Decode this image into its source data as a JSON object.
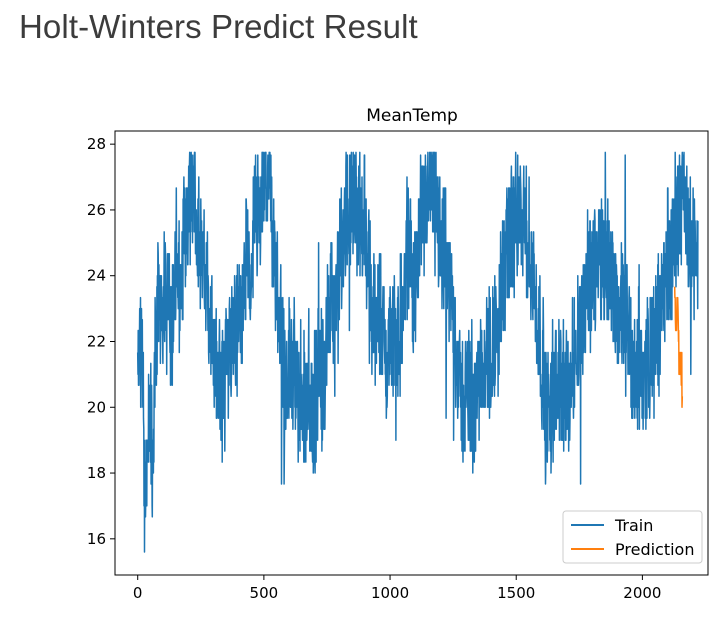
{
  "page": {
    "title": "Holt-Winters Predict Result"
  },
  "chart_data": {
    "type": "line",
    "title": "MeanTemp",
    "xlabel": "",
    "ylabel": "",
    "xlim": [
      -90,
      2260
    ],
    "ylim": [
      14.9,
      28.4
    ],
    "xticks": [
      0,
      500,
      1000,
      1500,
      2000
    ],
    "yticks": [
      16,
      18,
      20,
      22,
      24,
      26,
      28
    ],
    "legend_position": "lower-right",
    "colors": {
      "train": "#1f77b4",
      "prediction": "#ff7f0e"
    },
    "series": [
      {
        "name": "Train",
        "color": "#1f77b4",
        "x_range": [
          0,
          2135
        ],
        "x_step": 15,
        "values": [
          21.5,
          22.2,
          16.7,
          19.8,
          18.3,
          22.7,
          23.4,
          23.3,
          23.8,
          22.4,
          24.4,
          23.3,
          25.0,
          25.6,
          26.0,
          26.7,
          25.4,
          24.6,
          23.7,
          22.9,
          21.7,
          21.0,
          20.6,
          21.0,
          21.6,
          22.5,
          21.8,
          22.6,
          23.7,
          24.3,
          24.5,
          25.7,
          26.3,
          26.6,
          27.0,
          26.3,
          24.8,
          23.5,
          22.5,
          20.8,
          21.5,
          21.3,
          20.2,
          20.7,
          19.7,
          21.0,
          19.4,
          20.4,
          21.3,
          20.8,
          22.1,
          23.5,
          22.4,
          23.5,
          25.0,
          25.6,
          26.5,
          26.4,
          26.1,
          25.8,
          25.6,
          24.0,
          22.5,
          23.3,
          22.8,
          22.0,
          21.3,
          22.5,
          21.8,
          22.2,
          22.7,
          24.3,
          24.3,
          23.7,
          24.3,
          25.6,
          26.0,
          26.4,
          26.7,
          25.8,
          25.2,
          24.5,
          23.9,
          23.3,
          22.2,
          20.5,
          20.2,
          20.6,
          20.0,
          20.1,
          21.0,
          21.7,
          21.5,
          21.4,
          22.3,
          22.0,
          23.7,
          23.9,
          24.8,
          25.5,
          25.7,
          26.0,
          25.3,
          24.8,
          24.4,
          23.1,
          22.5,
          21.3,
          20.0,
          19.5,
          20.2,
          20.8,
          21.0,
          20.0,
          20.4,
          21.3,
          22.3,
          22.4,
          23.2,
          23.8,
          24.0,
          24.5,
          24.6,
          24.6,
          24.5,
          24.2,
          23.4,
          23.0,
          22.8,
          22.6,
          22.5,
          21.2,
          21.4,
          21.1,
          21.0,
          21.6,
          21.5,
          22.3,
          22.8,
          23.5,
          24.4,
          24.3,
          25.3,
          25.8,
          26.7,
          25.9,
          25.3,
          24.5,
          24.8
        ]
      },
      {
        "name": "Prediction",
        "color": "#ff7f0e",
        "x_range": [
          2128,
          2158
        ],
        "x_step": 5,
        "values": [
          23.0,
          22.1,
          23.5,
          22.3,
          20.5,
          21.8,
          20.3
        ]
      }
    ]
  }
}
